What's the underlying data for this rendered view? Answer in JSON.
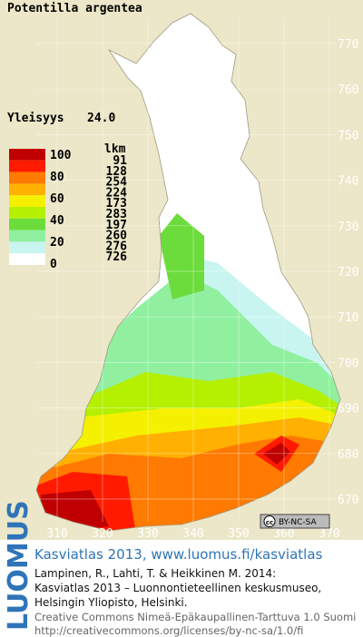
{
  "title": "Potentilla argentea",
  "frequency": {
    "label": "Yleisyys",
    "value": "24.0"
  },
  "legend": {
    "scale": [
      100,
      80,
      60,
      40,
      20,
      0
    ],
    "count_header": "lkm",
    "classes": [
      {
        "color": "#c00000",
        "count": 91
      },
      {
        "color": "#ff1a00",
        "count": 128
      },
      {
        "color": "#ff7a00",
        "count": 254
      },
      {
        "color": "#ffb000",
        "count": 224
      },
      {
        "color": "#f5f000",
        "count": 173
      },
      {
        "color": "#b4f000",
        "count": 283
      },
      {
        "color": "#6cdc3c",
        "count": 197
      },
      {
        "color": "#90f0a0",
        "count": 260
      },
      {
        "color": "#c8f5f0",
        "count": 276
      },
      {
        "color": "#ffffff",
        "count": 726
      }
    ]
  },
  "grid": {
    "north": [
      770,
      760,
      750,
      740,
      730,
      720,
      710,
      700,
      690,
      680,
      670
    ],
    "east": [
      310,
      320,
      330,
      340,
      350,
      360,
      370
    ]
  },
  "license_badge": "BY-NC-SA",
  "footer": {
    "logo": "LUOMUS",
    "headline": "Kasviatlas 2013, www.luomus.fi/kasviatlas",
    "citation": [
      "Lampinen, R., Lahti, T. & Heikkinen M. 2014:",
      "Kasviatlas 2013 – Luonnontieteellinen keskusmuseo,",
      "Helsingin Yliopisto, Helsinki."
    ],
    "license": [
      "Creative Commons Nimeä-Epäkaupallinen-Tarttuva 1.0 Suomi",
      "http://creativecommons.org/licenses/by-nc-sa/1.0/fi"
    ]
  }
}
